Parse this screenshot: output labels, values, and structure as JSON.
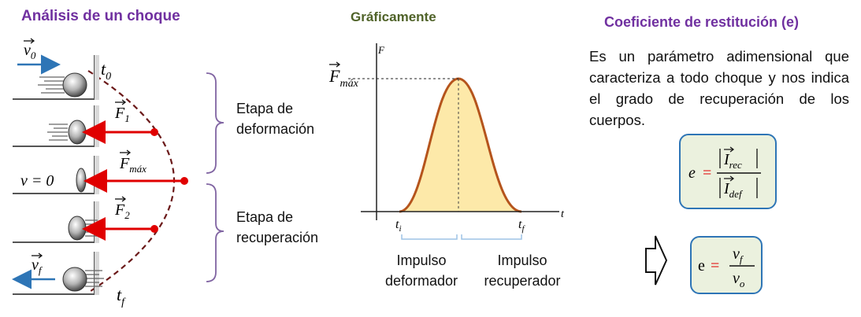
{
  "left": {
    "title": "Análisis de un choque",
    "stage_deformation": [
      "Etapa de",
      "deformación"
    ],
    "stage_recovery": [
      "Etapa de",
      "recuperación"
    ],
    "labels": {
      "v0": "v",
      "v0_sub": "0",
      "t0": "t",
      "t0_sub": "0",
      "F1": "F",
      "F1_sub": "1",
      "Fmax": "F",
      "Fmax_sub": "máx",
      "v_zero": "v = 0",
      "F2": "F",
      "F2_sub": "2",
      "vf": "v",
      "vf_sub": "f",
      "tf": "t",
      "tf_sub": "f"
    }
  },
  "middle": {
    "title": "Gráficamente",
    "axis_y": "F",
    "axis_x": "t",
    "peak_label": "F",
    "peak_sub": "máx",
    "ti": "t",
    "ti_sub": "i",
    "tf": "t",
    "tf_sub": "f",
    "impulse_def": [
      "Impulso",
      "deformador"
    ],
    "impulse_rec": [
      "Impulso",
      "recuperador"
    ]
  },
  "right": {
    "title": "Coeficiente de restitución (e)",
    "description": "Es un parámetro adimensional que caracteriza a todo choque y nos indica el grado de recuperación de los cuerpos.",
    "eq1": {
      "lhs": "e",
      "num": "I",
      "num_sub": "rec",
      "den": "I",
      "den_sub": "def"
    },
    "eq2": {
      "lhs": "e",
      "num": "v",
      "num_sub": "f",
      "den": "v",
      "den_sub": "o"
    }
  },
  "colors": {
    "purple": "#7030a0",
    "green": "#4f6228",
    "red_arrow": "#e00000",
    "blue_arrow": "#2e75b6",
    "curve": "#b5541c",
    "fill": "#fde9a9",
    "box_border": "#2e75b6",
    "box_fill": "#ebf1de",
    "bracket": "#8064a2",
    "dashed_path": "#6b1a1a"
  }
}
